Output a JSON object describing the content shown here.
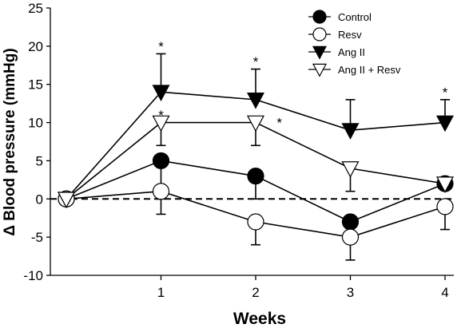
{
  "chart_data": {
    "type": "line",
    "xlabel": "Weeks",
    "ylabel": "Δ Blood pressure (mmHg)",
    "ylim": [
      -10,
      25
    ],
    "xlim": [
      0,
      4
    ],
    "y_ticks": [
      "25",
      "20",
      "15",
      "10",
      "5",
      "0",
      "-5",
      "-10"
    ],
    "x_ticks": [
      "1",
      "2",
      "3",
      "4"
    ],
    "reference_line": {
      "y": 0,
      "style": "dashed"
    },
    "legend_position": "top-right",
    "series": [
      {
        "name": "Control",
        "marker": "circle-filled",
        "x": [
          0,
          1,
          2,
          3,
          4
        ],
        "y": [
          0,
          5,
          3,
          -3,
          2
        ],
        "err_plus": [
          0,
          0,
          0,
          0,
          0
        ],
        "err_minus": [
          0,
          5,
          3,
          0,
          0
        ]
      },
      {
        "name": "Resv",
        "marker": "circle-open",
        "x": [
          0,
          1,
          2,
          3,
          4
        ],
        "y": [
          0,
          1,
          -3,
          -5,
          -1
        ],
        "err_plus": [
          0,
          0,
          0,
          0,
          0
        ],
        "err_minus": [
          0,
          3,
          3,
          3,
          3
        ]
      },
      {
        "name": "Ang II",
        "marker": "triangle-down-filled",
        "x": [
          0,
          1,
          2,
          3,
          4
        ],
        "y": [
          0,
          14,
          13,
          9,
          10
        ],
        "err_plus": [
          0,
          5,
          4,
          4,
          3
        ],
        "err_minus": [
          0,
          0,
          0,
          0,
          0
        ]
      },
      {
        "name": "Ang II + Resv",
        "marker": "triangle-down-open",
        "x": [
          0,
          1,
          2,
          3,
          4
        ],
        "y": [
          0,
          10,
          10,
          4,
          2
        ],
        "err_plus": [
          0,
          0,
          0,
          0,
          0
        ],
        "err_minus": [
          0,
          3,
          3,
          3,
          0
        ]
      }
    ],
    "annotations": [
      {
        "text": "*",
        "x": 1,
        "y": 20,
        "anchor": "middle"
      },
      {
        "text": "*",
        "x": 2,
        "y": 18,
        "anchor": "middle"
      },
      {
        "text": "*",
        "x": 4,
        "y": 14,
        "anchor": "middle"
      },
      {
        "text": "*",
        "x": 1,
        "y": 11,
        "anchor": "middle"
      },
      {
        "text": "*",
        "x": 2.25,
        "y": 10,
        "anchor": "middle"
      }
    ]
  }
}
